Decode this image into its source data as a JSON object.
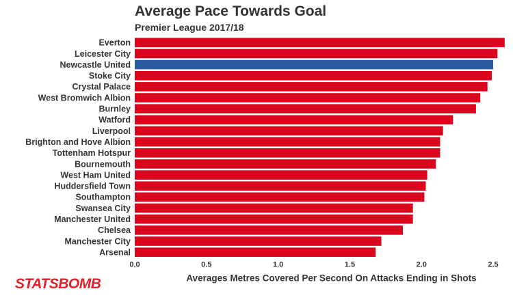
{
  "title": "Average Pace Towards Goal",
  "subtitle": "Premier League 2017/18",
  "logo_text": "STATSBOMB",
  "colors": {
    "default_bar": "#d9061e",
    "highlight_bar": "#2a5aa0",
    "text": "#333333",
    "logo": "#e0202a"
  },
  "chart_data": {
    "type": "bar",
    "orientation": "horizontal",
    "title": "Average Pace Towards Goal",
    "subtitle": "Premier League 2017/18",
    "xlabel": "Averages Metres Covered Per Second On Attacks Ending in Shots",
    "ylabel": "",
    "xlim": [
      0,
      2.6
    ],
    "xticks": [
      "0.0",
      "0.5",
      "1.0",
      "1.5",
      "2.0",
      "2.5"
    ],
    "highlight": "Newcastle United",
    "grid": false,
    "categories": [
      "Everton",
      "Leicester City",
      "Newcastle United",
      "Stoke City",
      "Crystal Palace",
      "West Bromwich Albion",
      "Burnley",
      "Watford",
      "Liverpool",
      "Brighton and Hove Albion",
      "Tottenham Hotspur",
      "Bournemouth",
      "West Ham United",
      "Huddersfield Town",
      "Southampton",
      "Swansea City",
      "Manchester United",
      "Chelsea",
      "Manchester City",
      "Arsenal"
    ],
    "values": [
      2.58,
      2.53,
      2.5,
      2.49,
      2.46,
      2.41,
      2.38,
      2.22,
      2.15,
      2.13,
      2.13,
      2.1,
      2.04,
      2.03,
      2.02,
      1.94,
      1.94,
      1.87,
      1.72,
      1.68
    ]
  }
}
